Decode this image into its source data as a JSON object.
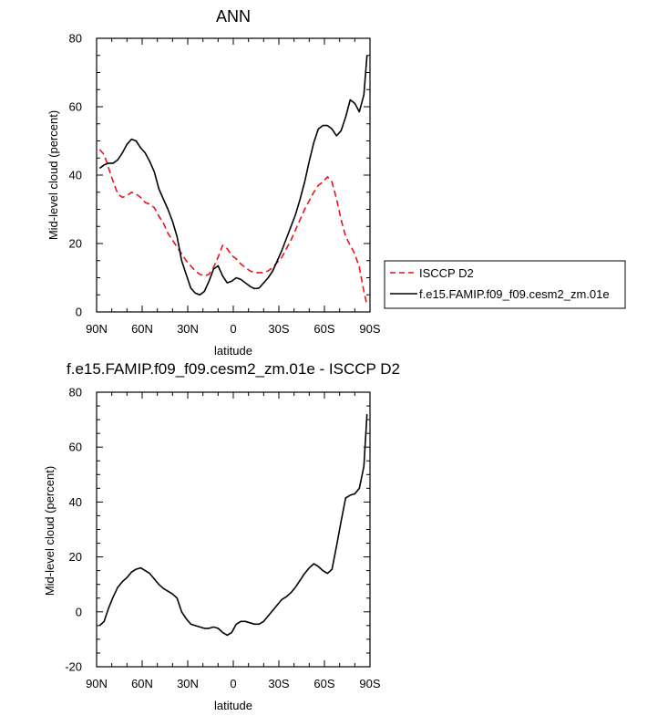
{
  "chart_data": [
    {
      "type": "line",
      "title": "ANN",
      "xlabel": "latitude",
      "ylabel": "Mid-level cloud (percent)",
      "xlim": [
        90,
        -90
      ],
      "ylim": [
        0,
        80
      ],
      "x_ticks": [
        {
          "value": 90,
          "label": "90N"
        },
        {
          "value": 60,
          "label": "60N"
        },
        {
          "value": 30,
          "label": "30N"
        },
        {
          "value": 0,
          "label": "0"
        },
        {
          "value": -30,
          "label": "30S"
        },
        {
          "value": -60,
          "label": "60S"
        },
        {
          "value": -90,
          "label": "90S"
        }
      ],
      "y_ticks": [
        0,
        20,
        40,
        60,
        80
      ],
      "legend_position": "right",
      "series": [
        {
          "name": "ISCCP D2",
          "color": "#e8141c",
          "dash": "dashed",
          "x": [
            88,
            85,
            82,
            79,
            76,
            73,
            70,
            67,
            64,
            61,
            58,
            55,
            52,
            49,
            46,
            43,
            40,
            37,
            34,
            31,
            28,
            25,
            22,
            19,
            16,
            13,
            10,
            7,
            4,
            1,
            -2,
            -5,
            -8,
            -11,
            -14,
            -17,
            -20,
            -23,
            -26,
            -29,
            -32,
            -35,
            -38,
            -41,
            -44,
            -47,
            -50,
            -53,
            -56,
            -59,
            -62,
            -65,
            -68,
            -71,
            -74,
            -77,
            -80,
            -83,
            -86,
            -88
          ],
          "y": [
            47.5,
            46,
            42,
            38,
            34.5,
            33.5,
            34,
            35,
            34.5,
            33.5,
            32,
            31.5,
            30.5,
            28,
            26,
            23,
            21,
            19,
            17,
            15,
            13.5,
            12,
            11,
            10.5,
            11,
            13,
            16,
            19.5,
            18.5,
            16.5,
            15.5,
            14,
            13,
            12,
            11.5,
            11.5,
            11.5,
            12,
            13,
            14.5,
            16,
            18.5,
            21,
            24,
            27,
            30,
            32.5,
            35,
            37,
            38,
            39.5,
            38,
            33,
            27,
            22,
            19.5,
            17,
            13,
            6,
            2
          ]
        },
        {
          "name": "f.e15.FAMIP.f09_f09.cesm2_zm.01e",
          "color": "#000000",
          "dash": "solid",
          "x": [
            88,
            85,
            82,
            79,
            76,
            73,
            70,
            67,
            64,
            61,
            58,
            55,
            52,
            49,
            46,
            43,
            40,
            37,
            34,
            31,
            28,
            25,
            22,
            19,
            16,
            13,
            10,
            7,
            4,
            1,
            -2,
            -5,
            -8,
            -11,
            -14,
            -17,
            -20,
            -23,
            -26,
            -29,
            -32,
            -35,
            -38,
            -41,
            -44,
            -47,
            -50,
            -53,
            -56,
            -59,
            -62,
            -65,
            -68,
            -71,
            -74,
            -77,
            -80,
            -83,
            -86,
            -88
          ],
          "y": [
            42,
            43,
            43.5,
            43.5,
            44.5,
            46.5,
            49,
            50.5,
            50,
            48,
            46.5,
            44,
            41,
            36,
            33,
            30,
            26.5,
            22,
            15,
            11,
            7,
            5.5,
            5,
            6,
            9,
            12.5,
            13.5,
            10.5,
            8.5,
            9,
            10,
            9.5,
            8.5,
            7.5,
            6.8,
            7,
            8.5,
            10,
            12,
            15,
            18,
            21.5,
            25,
            28.5,
            33,
            38,
            44,
            49.5,
            53.5,
            54.5,
            54.5,
            53.5,
            51.5,
            53,
            57,
            62,
            61,
            58.5,
            63.5,
            75
          ]
        }
      ]
    },
    {
      "type": "line",
      "title": "f.e15.FAMIP.f09_f09.cesm2_zm.01e - ISCCP D2",
      "xlabel": "latitude",
      "ylabel": "Mid-level cloud (percent)",
      "xlim": [
        90,
        -90
      ],
      "ylim": [
        -20,
        80
      ],
      "x_ticks": [
        {
          "value": 90,
          "label": "90N"
        },
        {
          "value": 60,
          "label": "60N"
        },
        {
          "value": 30,
          "label": "30N"
        },
        {
          "value": 0,
          "label": "0"
        },
        {
          "value": -30,
          "label": "30S"
        },
        {
          "value": -60,
          "label": "60S"
        },
        {
          "value": -90,
          "label": "90S"
        }
      ],
      "y_ticks": [
        -20,
        0,
        20,
        40,
        60,
        80
      ],
      "series": [
        {
          "color": "#000000",
          "dash": "solid",
          "x": [
            88,
            85,
            82,
            79,
            76,
            73,
            70,
            67,
            64,
            61,
            58,
            55,
            52,
            49,
            46,
            43,
            40,
            37,
            34,
            31,
            28,
            25,
            22,
            19,
            16,
            13,
            10,
            7,
            4,
            1,
            -2,
            -5,
            -8,
            -11,
            -14,
            -17,
            -20,
            -23,
            -26,
            -29,
            -32,
            -35,
            -38,
            -41,
            -44,
            -47,
            -50,
            -53,
            -56,
            -59,
            -62,
            -65,
            -68,
            -71,
            -74,
            -77,
            -80,
            -83,
            -86,
            -88
          ],
          "y": [
            -5,
            -3.5,
            1.5,
            5.5,
            9,
            11,
            12.5,
            14.5,
            15.5,
            16,
            15,
            14,
            12,
            10,
            8.5,
            7.5,
            6.5,
            5,
            0,
            -2.5,
            -4.5,
            -5,
            -5.5,
            -6,
            -6,
            -5.5,
            -6,
            -7.5,
            -8.5,
            -7.5,
            -4.5,
            -3.5,
            -3.5,
            -4,
            -4.5,
            -4.5,
            -3.5,
            -1.5,
            0.5,
            2.5,
            4.5,
            5.5,
            7,
            9,
            11.5,
            14,
            16,
            17.5,
            16.5,
            15,
            14,
            15.5,
            24,
            33,
            41.5,
            42.5,
            43,
            45,
            53,
            72
          ]
        }
      ]
    }
  ]
}
